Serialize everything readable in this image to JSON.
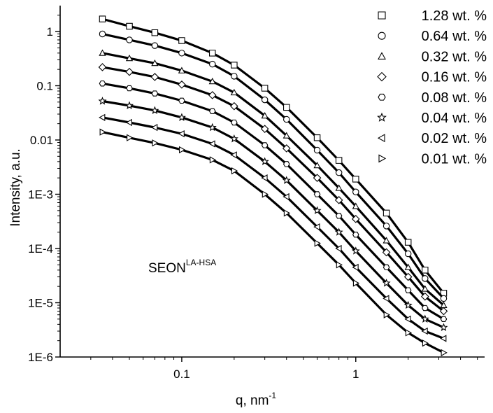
{
  "chart_data": {
    "type": "scatter",
    "title": "",
    "xlabel": "q, nm",
    "xlabel_sup": "-1",
    "ylabel": "Intensity, a.u.",
    "xscale": "log",
    "yscale": "log",
    "xlim": [
      0.02,
      5.5
    ],
    "ylim": [
      1e-06,
      3
    ],
    "x_ticks": [
      {
        "value": 0.1,
        "label": "0.1"
      },
      {
        "value": 1,
        "label": "1"
      }
    ],
    "y_ticks": [
      {
        "value": 1e-06,
        "label": "1E-6"
      },
      {
        "value": 1e-05,
        "label": "1E-5"
      },
      {
        "value": 0.0001,
        "label": "1E-4"
      },
      {
        "value": 0.001,
        "label": "1E-3"
      },
      {
        "value": 0.01,
        "label": "0.01"
      },
      {
        "value": 0.1,
        "label": "0.1"
      },
      {
        "value": 1,
        "label": "1"
      }
    ],
    "grid": false,
    "legend_position": "top-right",
    "annotation": {
      "text": "SEON",
      "sup": "LA-HSA"
    },
    "series": [
      {
        "name": "1.28 wt. %",
        "marker": "square",
        "x": [
          0.035,
          0.05,
          0.07,
          0.1,
          0.15,
          0.2,
          0.3,
          0.4,
          0.6,
          0.8,
          1.0,
          1.5,
          2.0,
          2.5,
          3.2
        ],
        "y": [
          1.7,
          1.25,
          0.95,
          0.68,
          0.4,
          0.24,
          0.09,
          0.04,
          0.011,
          0.0042,
          0.0019,
          0.00045,
          0.00013,
          4e-05,
          1.5e-05
        ]
      },
      {
        "name": "0.64 wt. %",
        "marker": "circle",
        "x": [
          0.035,
          0.05,
          0.07,
          0.1,
          0.15,
          0.2,
          0.3,
          0.4,
          0.6,
          0.8,
          1.0,
          1.5,
          2.0,
          2.5,
          3.2
        ],
        "y": [
          0.9,
          0.7,
          0.55,
          0.4,
          0.25,
          0.15,
          0.055,
          0.024,
          0.0065,
          0.0025,
          0.0011,
          0.00026,
          8e-05,
          2.8e-05,
          1.2e-05
        ]
      },
      {
        "name": "0.32 wt. %",
        "marker": "triangle-up",
        "x": [
          0.035,
          0.05,
          0.07,
          0.1,
          0.15,
          0.2,
          0.3,
          0.4,
          0.6,
          0.8,
          1.0,
          1.5,
          2.0,
          2.5,
          3.2
        ],
        "y": [
          0.4,
          0.32,
          0.26,
          0.19,
          0.12,
          0.075,
          0.028,
          0.012,
          0.0034,
          0.0013,
          0.0006,
          0.00014,
          4.5e-05,
          1.8e-05,
          9e-06
        ]
      },
      {
        "name": "0.16 wt. %",
        "marker": "diamond",
        "x": [
          0.035,
          0.05,
          0.07,
          0.1,
          0.15,
          0.2,
          0.3,
          0.4,
          0.6,
          0.8,
          1.0,
          1.5,
          2.0,
          2.5,
          3.2
        ],
        "y": [
          0.22,
          0.18,
          0.145,
          0.105,
          0.067,
          0.042,
          0.016,
          0.007,
          0.002,
          0.00078,
          0.00035,
          8.5e-05,
          3e-05,
          1.3e-05,
          7e-06
        ]
      },
      {
        "name": "0.08 wt. %",
        "marker": "hexagon",
        "x": [
          0.035,
          0.05,
          0.07,
          0.1,
          0.15,
          0.2,
          0.3,
          0.4,
          0.6,
          0.8,
          1.0,
          1.5,
          2.0,
          2.5,
          3.2
        ],
        "y": [
          0.11,
          0.09,
          0.072,
          0.053,
          0.034,
          0.021,
          0.008,
          0.0036,
          0.001,
          0.0004,
          0.00018,
          4.5e-05,
          1.7e-05,
          8e-06,
          5e-06
        ]
      },
      {
        "name": "0.04 wt. %",
        "marker": "star",
        "x": [
          0.035,
          0.05,
          0.07,
          0.1,
          0.15,
          0.2,
          0.3,
          0.4,
          0.6,
          0.8,
          1.0,
          1.5,
          2.0,
          2.5,
          3.2
        ],
        "y": [
          0.052,
          0.043,
          0.035,
          0.026,
          0.017,
          0.0105,
          0.004,
          0.0018,
          0.0005,
          0.0002,
          9e-05,
          2.3e-05,
          9e-06,
          5e-06,
          3.5e-06
        ]
      },
      {
        "name": "0.02 wt. %",
        "marker": "triangle-left",
        "x": [
          0.035,
          0.05,
          0.07,
          0.1,
          0.15,
          0.2,
          0.3,
          0.4,
          0.6,
          0.8,
          1.0,
          1.5,
          2.0,
          2.5,
          3.2
        ],
        "y": [
          0.026,
          0.021,
          0.017,
          0.013,
          0.0085,
          0.0053,
          0.002,
          0.0009,
          0.00025,
          0.0001,
          4.5e-05,
          1.2e-05,
          5e-06,
          3e-06,
          2.2e-06
        ]
      },
      {
        "name": "0.01 wt. %",
        "marker": "triangle-right",
        "x": [
          0.035,
          0.05,
          0.07,
          0.1,
          0.15,
          0.2,
          0.3,
          0.4,
          0.6,
          0.8,
          1.0,
          1.5,
          2.0,
          2.5,
          3.2
        ],
        "y": [
          0.014,
          0.011,
          0.0088,
          0.0066,
          0.0043,
          0.0027,
          0.001,
          0.00045,
          0.000125,
          5e-05,
          2.3e-05,
          6e-06,
          2.8e-06,
          1.8e-06,
          1.2e-06
        ]
      }
    ]
  }
}
